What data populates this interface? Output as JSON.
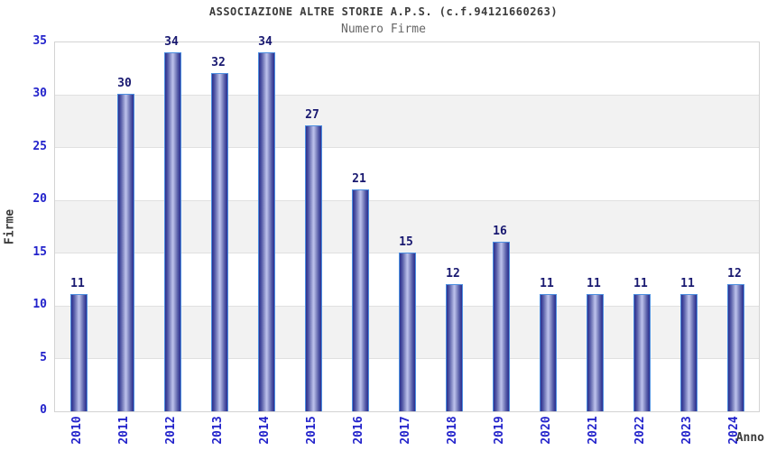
{
  "chart_data": {
    "type": "bar",
    "title": "ASSOCIAZIONE ALTRE STORIE A.P.S. (c.f.94121660263)",
    "subtitle": "Numero Firme",
    "xlabel": "Anno",
    "ylabel": "Firme",
    "categories": [
      "2010",
      "2011",
      "2012",
      "2013",
      "2014",
      "2015",
      "2016",
      "2017",
      "2018",
      "2019",
      "2020",
      "2021",
      "2022",
      "2023",
      "2024"
    ],
    "values": [
      11,
      30,
      34,
      32,
      34,
      27,
      21,
      15,
      12,
      16,
      11,
      11,
      11,
      11,
      12
    ],
    "ylim": [
      0,
      35
    ],
    "y_ticks": [
      0,
      5,
      10,
      15,
      20,
      25,
      30,
      35
    ],
    "grid": true,
    "legend": "none",
    "colors": {
      "bar_edge_dark": "#2c2f8f",
      "bar_center_light": "#bcc1ec",
      "bar_outline": "#4d8fe0",
      "value_label": "#181870",
      "tick_label": "#2323cb",
      "title": "#3b3b3b",
      "subtitle": "#666666",
      "band_gray": "#f2f2f2",
      "band_white": "#ffffff",
      "gridline": "#e0e0e0",
      "plot_border": "#d3d3d3",
      "background": "#ffffff"
    }
  }
}
